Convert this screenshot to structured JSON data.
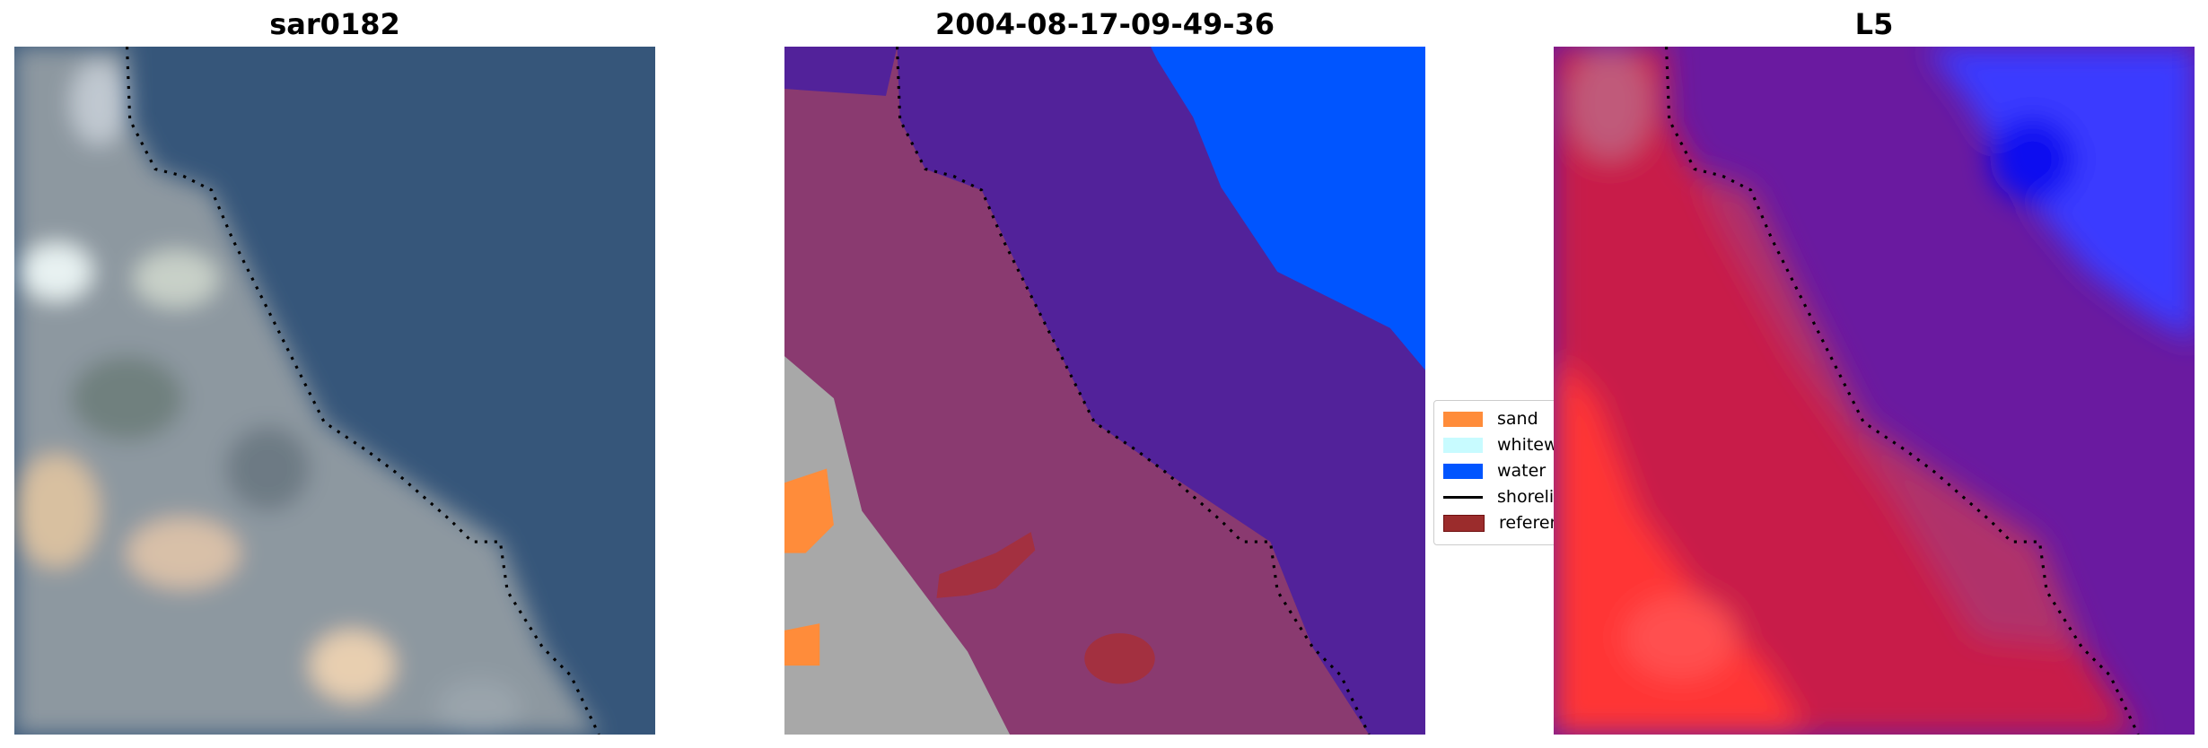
{
  "chart_data": [
    {
      "type": "image",
      "title": "sar0182",
      "shoreline_style": "dotted black"
    },
    {
      "type": "image",
      "title": "2004-08-17-09-49-36",
      "classes": [
        "sand",
        "whitewater",
        "water"
      ],
      "shoreline_style": "dotted black"
    },
    {
      "type": "image",
      "title": "L5",
      "shoreline_style": "dotted black"
    }
  ],
  "legend": {
    "placement": "center-right of middle panel (partially clipped)",
    "items": [
      {
        "label": "sand",
        "color": "#ff8c3a",
        "kind": "patch"
      },
      {
        "label": "whitewater",
        "color": "#c8fbff",
        "kind": "patch"
      },
      {
        "label": "water",
        "color": "#0055ff",
        "kind": "patch"
      },
      {
        "label": "shoreline",
        "color": "#000000",
        "kind": "line"
      },
      {
        "label": "reference",
        "color": "#9b2c2c",
        "kind": "patch"
      }
    ]
  }
}
